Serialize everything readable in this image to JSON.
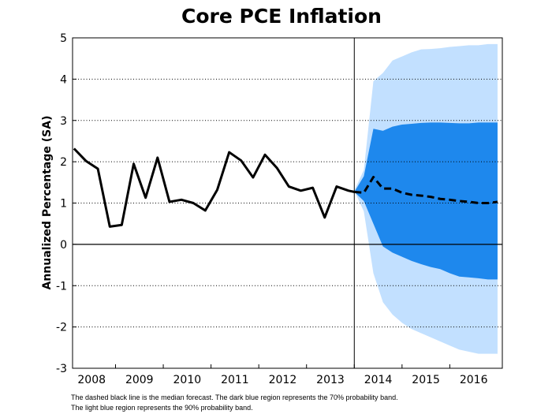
{
  "chart_data": {
    "type": "line",
    "title": "Core PCE Inflation",
    "ylabel": "Annualized Percentage (SA)",
    "xlabel": "",
    "ylim": [
      -3,
      5
    ],
    "xlim": [
      2007.6,
      2016.6
    ],
    "yticks": [
      -3,
      -2,
      -1,
      0,
      1,
      2,
      3,
      4,
      5
    ],
    "xticks": [
      {
        "label": "2008",
        "at": 2008.0
      },
      {
        "label": "2009",
        "at": 2009.0
      },
      {
        "label": "2010",
        "at": 2010.0
      },
      {
        "label": "2011",
        "at": 2011.0
      },
      {
        "label": "2012",
        "at": 2012.0
      },
      {
        "label": "2013",
        "at": 2013.0
      },
      {
        "label": "2014",
        "at": 2014.0
      },
      {
        "label": "2015",
        "at": 2015.0
      },
      {
        "label": "2016",
        "at": 2016.0
      }
    ],
    "grid": "horizontal dotted",
    "forecast_start": 2013.5,
    "series": [
      {
        "style": "solid black",
        "x": [
          2007.63,
          2007.88,
          2008.13,
          2008.38,
          2008.63,
          2008.88,
          2009.13,
          2009.38,
          2009.63,
          2009.88,
          2010.13,
          2010.38,
          2010.63,
          2010.88,
          2011.13,
          2011.38,
          2011.63,
          2011.88,
          2012.13,
          2012.38,
          2012.63,
          2012.88,
          2013.13,
          2013.38,
          2013.5
        ],
        "values": [
          2.32,
          2.02,
          1.83,
          0.43,
          0.47,
          1.95,
          1.13,
          2.1,
          1.03,
          1.08,
          1.0,
          0.82,
          1.32,
          2.23,
          2.03,
          1.62,
          2.17,
          1.85,
          1.4,
          1.3,
          1.37,
          0.65,
          1.4,
          1.3,
          1.27
        ]
      },
      {
        "style": "dashed black",
        "x": [
          2013.5,
          2013.7,
          2013.9,
          2014.1,
          2014.3,
          2014.5,
          2014.7,
          2014.9,
          2015.1,
          2015.3,
          2015.5,
          2015.7,
          2015.9,
          2016.1,
          2016.3,
          2016.5
        ],
        "values": [
          1.27,
          1.25,
          1.63,
          1.35,
          1.35,
          1.25,
          1.2,
          1.18,
          1.15,
          1.1,
          1.08,
          1.05,
          1.03,
          1.0,
          1.0,
          1.03
        ]
      }
    ],
    "bands": [
      {
        "color": "#c2e0ff",
        "x": [
          2013.5,
          2013.7,
          2013.9,
          2014.1,
          2014.3,
          2014.5,
          2014.7,
          2014.9,
          2015.1,
          2015.3,
          2015.5,
          2015.7,
          2015.9,
          2016.1,
          2016.3,
          2016.5
        ],
        "upper": [
          1.3,
          1.8,
          3.95,
          4.15,
          4.45,
          4.55,
          4.65,
          4.72,
          4.73,
          4.75,
          4.78,
          4.8,
          4.82,
          4.82,
          4.85,
          4.85
        ],
        "lower": [
          1.3,
          0.8,
          -0.7,
          -1.4,
          -1.7,
          -1.9,
          -2.05,
          -2.15,
          -2.25,
          -2.35,
          -2.45,
          -2.55,
          -2.6,
          -2.65,
          -2.65,
          -2.65
        ]
      },
      {
        "color": "#1e88ed",
        "x": [
          2013.5,
          2013.7,
          2013.9,
          2014.1,
          2014.3,
          2014.5,
          2014.7,
          2014.9,
          2015.1,
          2015.3,
          2015.5,
          2015.7,
          2015.9,
          2016.1,
          2016.3,
          2016.5
        ],
        "upper": [
          1.27,
          1.65,
          2.8,
          2.75,
          2.85,
          2.9,
          2.92,
          2.94,
          2.95,
          2.95,
          2.94,
          2.93,
          2.93,
          2.95,
          2.95,
          2.95
        ],
        "lower": [
          1.27,
          1.05,
          0.5,
          -0.05,
          -0.2,
          -0.3,
          -0.4,
          -0.48,
          -0.55,
          -0.6,
          -0.7,
          -0.78,
          -0.8,
          -0.82,
          -0.85,
          -0.85
        ]
      }
    ]
  },
  "notes": [
    "The dashed black line is the median forecast. The dark blue region represents the 70% probability band.",
    "The light blue region represents the 90% probability band."
  ]
}
